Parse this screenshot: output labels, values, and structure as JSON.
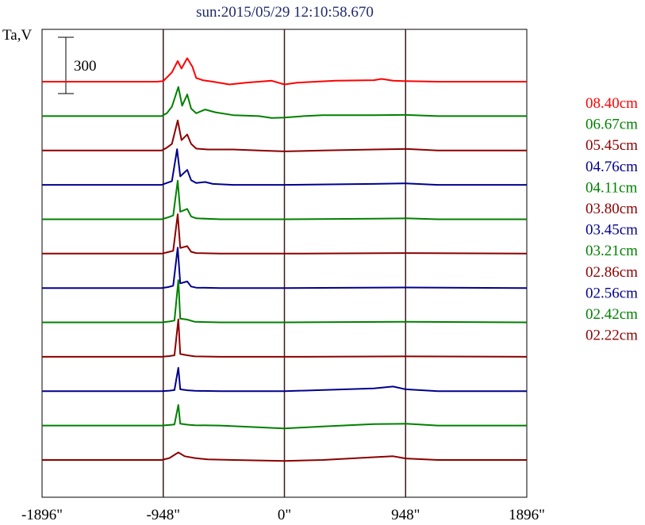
{
  "chart_data": {
    "type": "line",
    "title": "sun:2015/05/29 12:10:58.670",
    "ylabel": "Ta,V",
    "xlabel": "",
    "x_ticks": [
      {
        "value": -1896,
        "label": "-1896\""
      },
      {
        "value": -948,
        "label": "-948\""
      },
      {
        "value": 0,
        "label": "0\""
      },
      {
        "value": 948,
        "label": "948\""
      },
      {
        "value": 1896,
        "label": "1896\""
      }
    ],
    "xlim": [
      -1896,
      1896
    ],
    "vertical_lines_at": [
      -948,
      0,
      948
    ],
    "scale_bar": {
      "label": "300",
      "value": 300
    },
    "grid": false,
    "legend_placement": "right",
    "series": [
      {
        "name": "08.40cm",
        "color": "#ff0000",
        "baseline": 0,
        "points": [
          [
            -1896,
            0
          ],
          [
            -1000,
            0
          ],
          [
            -948,
            3
          ],
          [
            -880,
            50
          ],
          [
            -835,
            110
          ],
          [
            -805,
            70
          ],
          [
            -760,
            125
          ],
          [
            -720,
            80
          ],
          [
            -690,
            20
          ],
          [
            -640,
            8
          ],
          [
            -560,
            0
          ],
          [
            -430,
            -15
          ],
          [
            -300,
            -5
          ],
          [
            -100,
            5
          ],
          [
            0,
            -15
          ],
          [
            100,
            -5
          ],
          [
            400,
            5
          ],
          [
            700,
            8
          ],
          [
            760,
            15
          ],
          [
            850,
            5
          ],
          [
            948,
            3
          ],
          [
            1200,
            0
          ],
          [
            1896,
            0
          ]
        ]
      },
      {
        "name": "06.67cm",
        "color": "#008000",
        "baseline": 0,
        "points": [
          [
            -1896,
            0
          ],
          [
            -960,
            0
          ],
          [
            -920,
            15
          ],
          [
            -880,
            50
          ],
          [
            -830,
            155
          ],
          [
            -800,
            55
          ],
          [
            -760,
            115
          ],
          [
            -730,
            40
          ],
          [
            -690,
            15
          ],
          [
            -620,
            35
          ],
          [
            -540,
            20
          ],
          [
            -400,
            5
          ],
          [
            -200,
            0
          ],
          [
            -100,
            -10
          ],
          [
            0,
            -8
          ],
          [
            150,
            0
          ],
          [
            300,
            5
          ],
          [
            700,
            5
          ],
          [
            948,
            6
          ],
          [
            1200,
            0
          ],
          [
            1896,
            0
          ]
        ]
      },
      {
        "name": "05.45cm",
        "color": "#8b0000",
        "baseline": 0,
        "points": [
          [
            -1896,
            0
          ],
          [
            -960,
            0
          ],
          [
            -920,
            15
          ],
          [
            -880,
            35
          ],
          [
            -835,
            160
          ],
          [
            -805,
            55
          ],
          [
            -760,
            85
          ],
          [
            -730,
            35
          ],
          [
            -690,
            10
          ],
          [
            -600,
            5
          ],
          [
            -400,
            5
          ],
          [
            -200,
            0
          ],
          [
            0,
            -5
          ],
          [
            300,
            0
          ],
          [
            700,
            5
          ],
          [
            948,
            8
          ],
          [
            1200,
            0
          ],
          [
            1896,
            0
          ]
        ]
      },
      {
        "name": "04.76cm",
        "color": "#00008b",
        "baseline": 0,
        "points": [
          [
            -1896,
            0
          ],
          [
            -960,
            0
          ],
          [
            -920,
            10
          ],
          [
            -880,
            20
          ],
          [
            -840,
            190
          ],
          [
            -815,
            45
          ],
          [
            -760,
            80
          ],
          [
            -730,
            25
          ],
          [
            -690,
            10
          ],
          [
            -620,
            15
          ],
          [
            -560,
            5
          ],
          [
            -400,
            0
          ],
          [
            0,
            0
          ],
          [
            700,
            5
          ],
          [
            948,
            8
          ],
          [
            1200,
            0
          ],
          [
            1896,
            0
          ]
        ]
      },
      {
        "name": "04.11cm",
        "color": "#008000",
        "baseline": 0,
        "points": [
          [
            -1896,
            0
          ],
          [
            -960,
            0
          ],
          [
            -910,
            10
          ],
          [
            -870,
            20
          ],
          [
            -835,
            205
          ],
          [
            -815,
            40
          ],
          [
            -760,
            55
          ],
          [
            -730,
            15
          ],
          [
            -690,
            5
          ],
          [
            -500,
            0
          ],
          [
            0,
            0
          ],
          [
            700,
            3
          ],
          [
            948,
            5
          ],
          [
            1200,
            0
          ],
          [
            1896,
            0
          ]
        ]
      },
      {
        "name": "03.80cm",
        "color": "#8b0000",
        "baseline": 0,
        "points": [
          [
            -1896,
            0
          ],
          [
            -960,
            0
          ],
          [
            -910,
            8
          ],
          [
            -870,
            15
          ],
          [
            -835,
            210
          ],
          [
            -815,
            30
          ],
          [
            -760,
            40
          ],
          [
            -730,
            10
          ],
          [
            -690,
            3
          ],
          [
            -500,
            0
          ],
          [
            0,
            0
          ],
          [
            948,
            3
          ],
          [
            1896,
            0
          ]
        ]
      },
      {
        "name": "03.45cm",
        "color": "#00008b",
        "baseline": 0,
        "points": [
          [
            -1896,
            0
          ],
          [
            -960,
            0
          ],
          [
            -910,
            5
          ],
          [
            -870,
            12
          ],
          [
            -835,
            215
          ],
          [
            -815,
            25
          ],
          [
            -760,
            35
          ],
          [
            -730,
            8
          ],
          [
            -690,
            2
          ],
          [
            -500,
            0
          ],
          [
            0,
            0
          ],
          [
            948,
            3
          ],
          [
            1896,
            0
          ]
        ]
      },
      {
        "name": "03.21cm",
        "color": "#008000",
        "baseline": 0,
        "points": [
          [
            -1896,
            0
          ],
          [
            -960,
            0
          ],
          [
            -900,
            5
          ],
          [
            -860,
            10
          ],
          [
            -830,
            225
          ],
          [
            -815,
            20
          ],
          [
            -760,
            15
          ],
          [
            -700,
            3
          ],
          [
            -500,
            0
          ],
          [
            0,
            0
          ],
          [
            948,
            3
          ],
          [
            1896,
            0
          ]
        ]
      },
      {
        "name": "02.86cm",
        "color": "#8b0000",
        "baseline": 0,
        "points": [
          [
            -1896,
            0
          ],
          [
            -960,
            0
          ],
          [
            -900,
            4
          ],
          [
            -860,
            8
          ],
          [
            -830,
            200
          ],
          [
            -815,
            15
          ],
          [
            -760,
            8
          ],
          [
            -700,
            2
          ],
          [
            -500,
            0
          ],
          [
            0,
            0
          ],
          [
            948,
            2
          ],
          [
            1896,
            0
          ]
        ]
      },
      {
        "name": "02.56cm",
        "color": "#00008b",
        "baseline": 0,
        "points": [
          [
            -1896,
            0
          ],
          [
            -960,
            0
          ],
          [
            -900,
            3
          ],
          [
            -860,
            6
          ],
          [
            -830,
            125
          ],
          [
            -815,
            10
          ],
          [
            -760,
            5
          ],
          [
            -700,
            2
          ],
          [
            -500,
            0
          ],
          [
            0,
            0
          ],
          [
            700,
            15
          ],
          [
            850,
            25
          ],
          [
            948,
            10
          ],
          [
            1200,
            0
          ],
          [
            1896,
            0
          ]
        ]
      },
      {
        "name": "02.42cm",
        "color": "#008000",
        "baseline": 0,
        "points": [
          [
            -1896,
            0
          ],
          [
            -960,
            0
          ],
          [
            -900,
            3
          ],
          [
            -860,
            6
          ],
          [
            -830,
            110
          ],
          [
            -815,
            10
          ],
          [
            -760,
            5
          ],
          [
            -700,
            2
          ],
          [
            -500,
            0
          ],
          [
            0,
            -15
          ],
          [
            300,
            -5
          ],
          [
            700,
            8
          ],
          [
            948,
            10
          ],
          [
            1200,
            0
          ],
          [
            1896,
            0
          ]
        ]
      },
      {
        "name": "02.22cm",
        "color": "#8b0000",
        "baseline": 0,
        "points": [
          [
            -1896,
            0
          ],
          [
            -960,
            0
          ],
          [
            -900,
            10
          ],
          [
            -830,
            40
          ],
          [
            -780,
            20
          ],
          [
            -700,
            10
          ],
          [
            -600,
            3
          ],
          [
            -400,
            0
          ],
          [
            0,
            -5
          ],
          [
            300,
            0
          ],
          [
            700,
            15
          ],
          [
            850,
            20
          ],
          [
            948,
            8
          ],
          [
            1200,
            0
          ],
          [
            1896,
            0
          ]
        ]
      }
    ]
  }
}
